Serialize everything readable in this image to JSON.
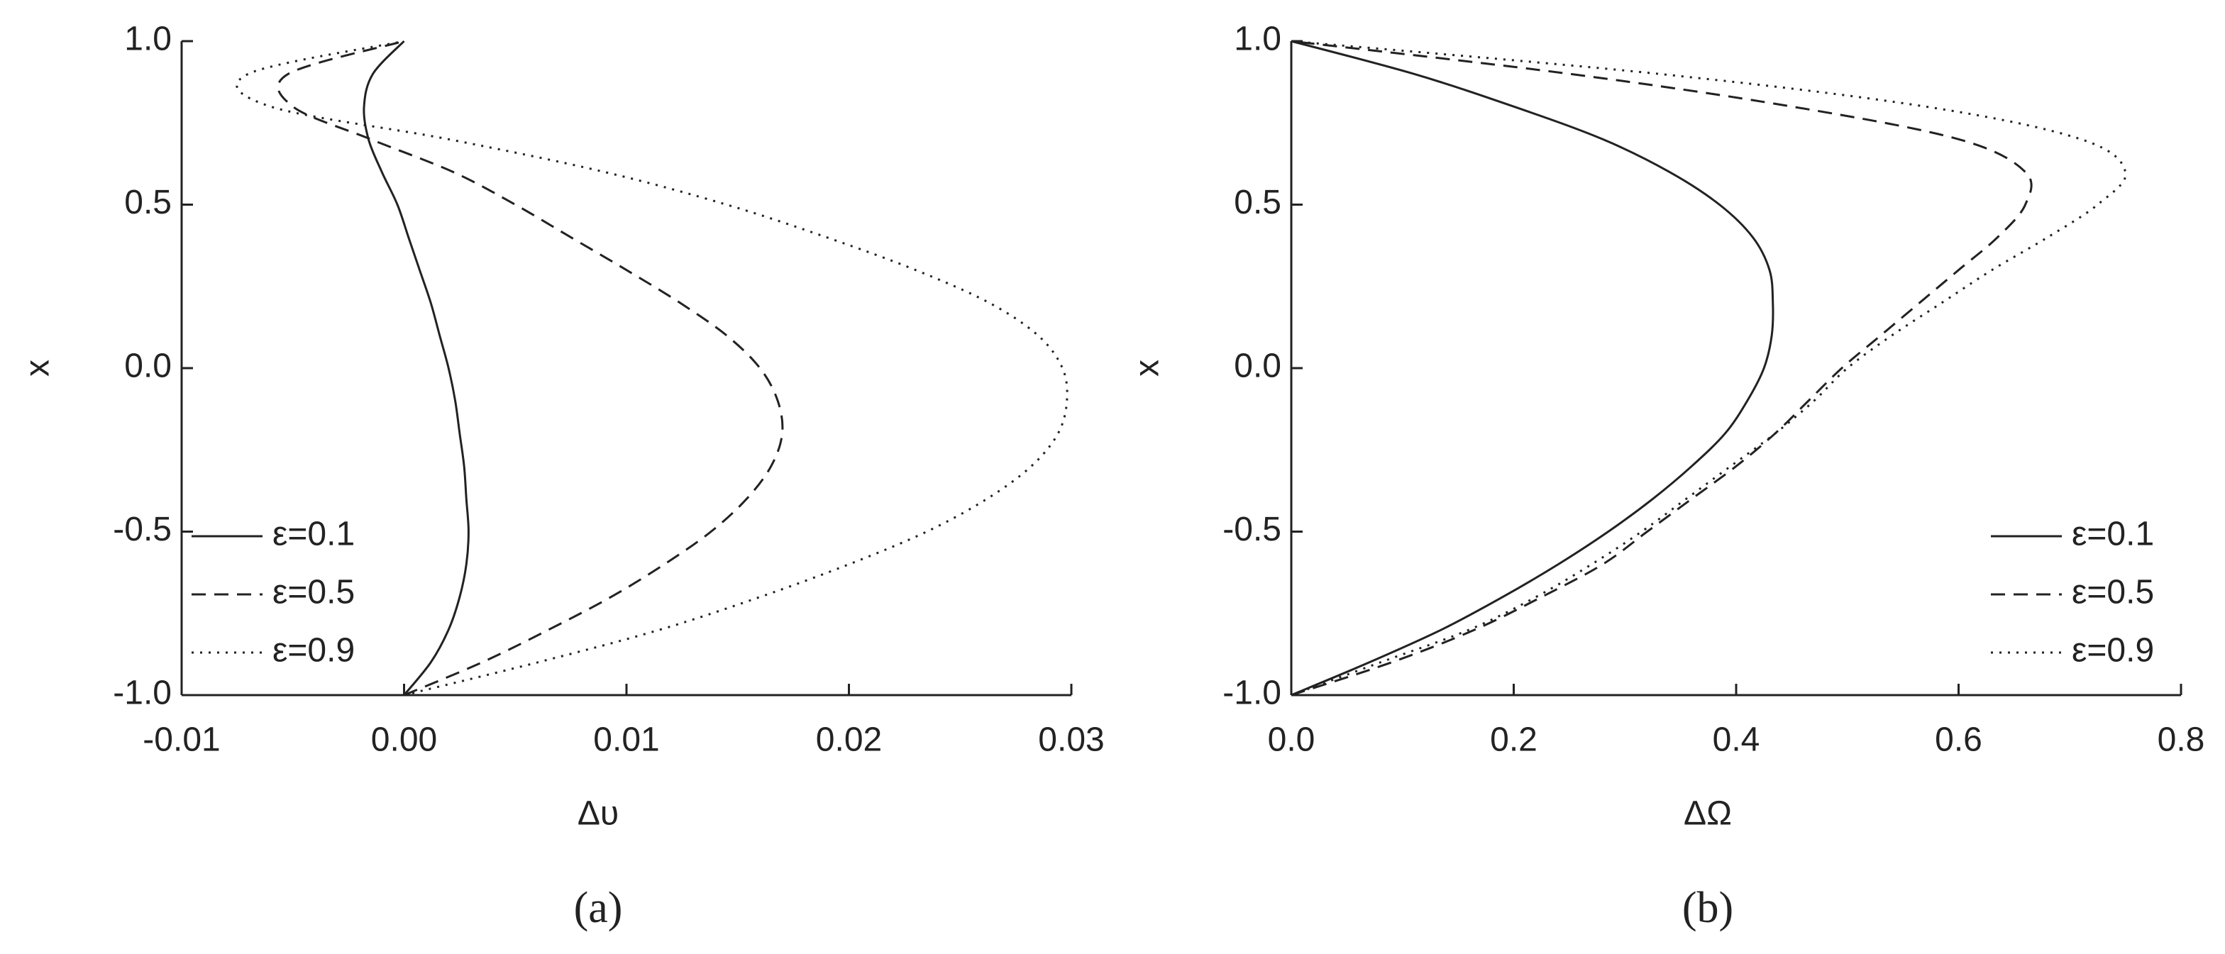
{
  "chart_data": [
    {
      "type": "line",
      "caption": "(a)",
      "xlabel": "Δυ",
      "ylabel": "x",
      "legend": "lower left",
      "y": [
        -1.0,
        -0.9,
        -0.8,
        -0.7,
        -0.6,
        -0.5,
        -0.4,
        -0.3,
        -0.2,
        -0.1,
        0.0,
        0.1,
        0.2,
        0.3,
        0.4,
        0.5,
        0.6,
        0.7,
        0.8,
        0.9,
        1.0
      ],
      "xlim": [
        -0.01,
        0.03
      ],
      "xticks": [
        -0.01,
        {
          "value": 0,
          "label": "0.00"
        },
        0.01,
        0.02,
        0.03
      ],
      "ylim": [
        -1,
        1
      ],
      "yticks": [
        {
          "value": -1,
          "label": "-1.0"
        },
        -0.5,
        {
          "value": 0,
          "label": "0.0"
        },
        0.5,
        {
          "value": 1,
          "label": "1.0"
        }
      ],
      "series": [
        {
          "name": "ε=0.1",
          "color": "#222222",
          "dash": "solid",
          "values": [
            0,
            0.0012,
            0.002,
            0.0025,
            0.0028,
            0.0029,
            0.0028,
            0.0027,
            0.0025,
            0.0023,
            0.002,
            0.0016,
            0.0012,
            0.0007,
            0.0002,
            -0.0003,
            -0.001,
            -0.0016,
            -0.0018,
            -0.0014,
            0
          ]
        },
        {
          "name": "ε=0.5",
          "color": "#222222",
          "dash": "dashed",
          "values": [
            0,
            0.0035,
            0.0065,
            0.0093,
            0.0117,
            0.0138,
            0.0154,
            0.0165,
            0.017,
            0.0168,
            0.016,
            0.0145,
            0.0124,
            0.01,
            0.0075,
            0.005,
            0.0022,
            -0.0015,
            -0.005,
            -0.0052,
            0
          ]
        },
        {
          "name": "ε=0.9",
          "color": "#222222",
          "dash": "dotted",
          "values": [
            0,
            0.006,
            0.0115,
            0.016,
            0.02,
            0.0235,
            0.0262,
            0.0282,
            0.0294,
            0.0298,
            0.0296,
            0.0285,
            0.0263,
            0.023,
            0.019,
            0.0145,
            0.009,
            0.002,
            -0.006,
            -0.007,
            0
          ]
        }
      ]
    },
    {
      "type": "line",
      "caption": "(b)",
      "xlabel": "ΔΩ",
      "ylabel": "x",
      "legend": "lower right",
      "y": [
        -1.0,
        -0.9,
        -0.8,
        -0.7,
        -0.6,
        -0.5,
        -0.4,
        -0.3,
        -0.2,
        -0.1,
        0.0,
        0.1,
        0.2,
        0.3,
        0.4,
        0.5,
        0.6,
        0.7,
        0.8,
        0.9,
        1.0
      ],
      "xlim": [
        0,
        0.8
      ],
      "xticks": [
        {
          "value": 0,
          "label": "0.0"
        },
        0.2,
        0.4,
        0.6,
        0.8
      ],
      "ylim": [
        -1,
        1
      ],
      "yticks": [
        {
          "value": -1,
          "label": "-1.0"
        },
        -0.5,
        {
          "value": 0,
          "label": "0.0"
        },
        0.5,
        {
          "value": 1,
          "label": "1.0"
        }
      ],
      "series": [
        {
          "name": "ε=0.1",
          "color": "#222222",
          "dash": "solid",
          "values": [
            0,
            0.07,
            0.135,
            0.19,
            0.24,
            0.285,
            0.325,
            0.36,
            0.39,
            0.41,
            0.425,
            0.432,
            0.433,
            0.43,
            0.415,
            0.385,
            0.34,
            0.28,
            0.2,
            0.11,
            0
          ]
        },
        {
          "name": "ε=0.5",
          "color": "#222222",
          "dash": "dashed",
          "values": [
            0,
            0.09,
            0.165,
            0.225,
            0.28,
            0.32,
            0.36,
            0.4,
            0.435,
            0.465,
            0.495,
            0.53,
            0.565,
            0.6,
            0.635,
            0.66,
            0.66,
            0.6,
            0.45,
            0.25,
            0
          ]
        },
        {
          "name": "ε=0.9",
          "color": "#222222",
          "dash": "dotted",
          "values": [
            0,
            0.08,
            0.16,
            0.22,
            0.27,
            0.315,
            0.355,
            0.395,
            0.435,
            0.47,
            0.5,
            0.54,
            0.585,
            0.63,
            0.68,
            0.725,
            0.75,
            0.71,
            0.57,
            0.33,
            0
          ]
        }
      ]
    }
  ]
}
